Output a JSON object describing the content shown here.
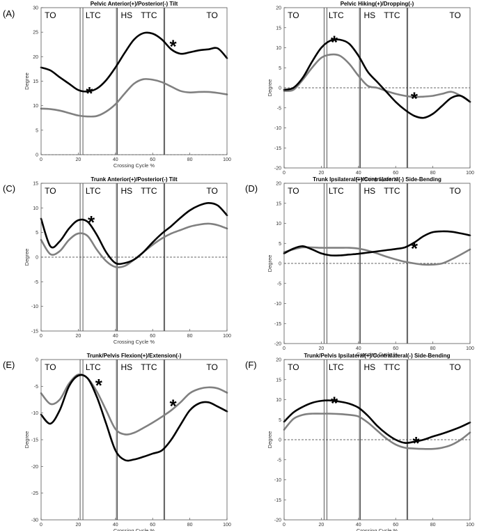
{
  "chart_data": [
    {
      "type": "line",
      "panel_label": "(A)",
      "title": "Pelvic Anterior(+)/Posterior(-) Tilt",
      "xlabel": "Crossing Cycle %",
      "ylabel": "Degree",
      "xlim": [
        0,
        100
      ],
      "ylim": [
        0,
        30
      ],
      "xticks": [
        0,
        20,
        40,
        60,
        80,
        100
      ],
      "yticks": [
        0,
        5,
        10,
        15,
        20,
        25,
        30
      ],
      "zero_line": 0,
      "phase_lines": [
        [
          21,
          22.5
        ],
        [
          40.5,
          41
        ],
        [
          66,
          66.5
        ]
      ],
      "phase_labels": [
        {
          "text": "TO",
          "x": 5
        },
        {
          "text": "LTC",
          "x": 28
        },
        {
          "text": "HS",
          "x": 46
        },
        {
          "text": "TTC",
          "x": 58
        },
        {
          "text": "TO",
          "x": 92
        }
      ],
      "series": [
        {
          "name": "black",
          "color": "#000000",
          "x": [
            0,
            5,
            10,
            15,
            20,
            25,
            30,
            35,
            40,
            45,
            50,
            55,
            60,
            65,
            70,
            75,
            80,
            85,
            90,
            95,
            100
          ],
          "values": [
            17.8,
            17.2,
            15.8,
            14.5,
            13.2,
            12.9,
            13.5,
            15.2,
            17.8,
            20.8,
            23.5,
            24.8,
            24.7,
            23.5,
            21.5,
            20.6,
            20.9,
            21.3,
            21.5,
            21.7,
            19.7
          ]
        },
        {
          "name": "gray",
          "color": "#808080",
          "x": [
            0,
            5,
            10,
            15,
            20,
            25,
            30,
            35,
            40,
            45,
            50,
            55,
            60,
            65,
            70,
            75,
            80,
            85,
            90,
            95,
            100
          ],
          "values": [
            9.4,
            9.3,
            9.0,
            8.5,
            8.0,
            7.8,
            7.9,
            8.8,
            10.3,
            12.5,
            14.5,
            15.4,
            15.3,
            14.8,
            13.9,
            13.0,
            12.7,
            12.8,
            12.8,
            12.6,
            12.3
          ]
        }
      ],
      "annotations": [
        {
          "text": "*",
          "x": 26,
          "y": 13.2
        },
        {
          "text": "*",
          "x": 71,
          "y": 22.8
        }
      ]
    },
    {
      "type": "line",
      "panel_label": "",
      "title": "Pelvic Hiking(+)/Dropping(-)",
      "xlabel": "Crossing Cycle %",
      "ylabel": "Degree",
      "xlim": [
        0,
        100
      ],
      "ylim": [
        -20,
        20
      ],
      "xticks": [
        0,
        20,
        40,
        60,
        80,
        100
      ],
      "yticks": [
        -20,
        -15,
        -10,
        -5,
        0,
        5,
        10,
        15,
        20
      ],
      "zero_line": 0,
      "phase_lines": [
        [
          21.5,
          23
        ],
        [
          40.5,
          41
        ],
        [
          66,
          66.5
        ]
      ],
      "phase_labels": [
        {
          "text": "TO",
          "x": 5
        },
        {
          "text": "LTC",
          "x": 28
        },
        {
          "text": "HS",
          "x": 46
        },
        {
          "text": "TTC",
          "x": 58
        },
        {
          "text": "TO",
          "x": 92
        }
      ],
      "series": [
        {
          "name": "black",
          "color": "#000000",
          "x": [
            0,
            5,
            10,
            15,
            20,
            25,
            30,
            35,
            40,
            45,
            50,
            55,
            60,
            65,
            70,
            75,
            80,
            85,
            90,
            95,
            100
          ],
          "values": [
            -0.5,
            0,
            2.5,
            6.5,
            10,
            11.8,
            12,
            11,
            8,
            4,
            1.5,
            -1,
            -3.5,
            -5.5,
            -7,
            -7.5,
            -6.5,
            -4.5,
            -2.5,
            -2,
            -3.5
          ]
        },
        {
          "name": "gray",
          "color": "#808080",
          "x": [
            0,
            5,
            10,
            15,
            20,
            25,
            30,
            35,
            40,
            45,
            50,
            55,
            60,
            65,
            70,
            75,
            80,
            85,
            90,
            95,
            100
          ],
          "values": [
            -0.8,
            -0.5,
            2,
            5,
            7.5,
            8.3,
            8,
            6,
            3,
            0.5,
            0,
            -0.8,
            -1.5,
            -2,
            -2.3,
            -2.2,
            -2,
            -1.5,
            -1,
            -2,
            -3.5
          ]
        }
      ],
      "annotations": [
        {
          "text": "*",
          "x": 27,
          "y": 12.3
        },
        {
          "text": "*",
          "x": 70,
          "y": -1.8
        }
      ]
    },
    {
      "type": "line",
      "panel_label": "(C)",
      "title": "Trunk Anterior(+)/Posterior(-) Tilt",
      "xlabel": "Crossing Cycle %",
      "ylabel": "Degree",
      "xlim": [
        0,
        100
      ],
      "ylim": [
        -15,
        15
      ],
      "xticks": [
        0,
        20,
        40,
        60,
        80,
        100
      ],
      "yticks": [
        -15,
        -10,
        -5,
        0,
        5,
        10,
        15
      ],
      "zero_line": 0,
      "phase_lines": [
        [
          21,
          22.5
        ],
        [
          40.5,
          41
        ],
        [
          66,
          66.5
        ]
      ],
      "phase_labels": [
        {
          "text": "TO",
          "x": 5
        },
        {
          "text": "LTC",
          "x": 28
        },
        {
          "text": "HS",
          "x": 46
        },
        {
          "text": "TTC",
          "x": 58
        },
        {
          "text": "TO",
          "x": 92
        }
      ],
      "series": [
        {
          "name": "black",
          "color": "#000000",
          "x": [
            0,
            5,
            10,
            15,
            20,
            25,
            30,
            35,
            40,
            45,
            50,
            55,
            60,
            65,
            70,
            75,
            80,
            85,
            90,
            95,
            100
          ],
          "values": [
            7.8,
            2.2,
            3.2,
            5.8,
            7.5,
            7.2,
            4.5,
            1,
            -1.2,
            -1.2,
            -0.5,
            1,
            3,
            4.8,
            6.3,
            8,
            9.5,
            10.5,
            11,
            10.5,
            8.5
          ]
        },
        {
          "name": "gray",
          "color": "#808080",
          "x": [
            0,
            5,
            10,
            15,
            20,
            25,
            30,
            35,
            40,
            45,
            50,
            55,
            60,
            65,
            70,
            75,
            80,
            85,
            90,
            95,
            100
          ],
          "values": [
            3.5,
            0.6,
            1.2,
            3.5,
            4.8,
            4.3,
            1.5,
            -0.8,
            -2,
            -1.8,
            -0.5,
            1,
            2.5,
            3.8,
            4.8,
            5.5,
            6.2,
            6.6,
            6.8,
            6.5,
            5.8
          ]
        }
      ],
      "annotations": [
        {
          "text": "*",
          "x": 27,
          "y": 7.8
        }
      ]
    },
    {
      "type": "line",
      "panel_label": "(D)",
      "title": "Trunk Ipsilateral(+)/Contralateral(-) Side-Bending",
      "xlabel": "Crossing Cycle %",
      "ylabel": "Degree",
      "xlim": [
        0,
        100
      ],
      "ylim": [
        -20,
        20
      ],
      "xticks": [
        0,
        20,
        40,
        60,
        80,
        100
      ],
      "yticks": [
        -20,
        -15,
        -10,
        -5,
        0,
        5,
        10,
        15,
        20
      ],
      "zero_line": 0,
      "phase_lines": [
        [
          21.5,
          23
        ],
        [
          40.5,
          41
        ],
        [
          66,
          66.5
        ]
      ],
      "phase_labels": [
        {
          "text": "TO",
          "x": 5
        },
        {
          "text": "LTC",
          "x": 28
        },
        {
          "text": "HS",
          "x": 46
        },
        {
          "text": "TTC",
          "x": 58
        },
        {
          "text": "TO",
          "x": 92
        }
      ],
      "series": [
        {
          "name": "black",
          "color": "#000000",
          "x": [
            0,
            5,
            10,
            15,
            20,
            25,
            30,
            35,
            40,
            45,
            50,
            55,
            60,
            65,
            70,
            75,
            80,
            85,
            90,
            95,
            100
          ],
          "values": [
            2.5,
            3.7,
            4.3,
            3.5,
            2.5,
            2,
            2,
            2.2,
            2.4,
            2.7,
            3,
            3.3,
            3.6,
            4,
            5.2,
            6.8,
            7.8,
            8,
            7.9,
            7.5,
            7
          ]
        },
        {
          "name": "gray",
          "color": "#808080",
          "x": [
            0,
            5,
            10,
            15,
            20,
            25,
            30,
            35,
            40,
            45,
            50,
            55,
            60,
            65,
            70,
            75,
            80,
            85,
            90,
            95,
            100
          ],
          "values": [
            2.8,
            3.5,
            4,
            4,
            3.9,
            3.9,
            3.9,
            3.9,
            3.7,
            3.2,
            2.5,
            1.7,
            1,
            0.4,
            0,
            -0.3,
            -0.3,
            0,
            1,
            2.2,
            3.5
          ]
        }
      ],
      "annotations": [
        {
          "text": "*",
          "x": 70,
          "y": 4.6
        }
      ]
    },
    {
      "type": "line",
      "panel_label": "(E)",
      "title": "Trunk/Pelvis Flexion(+)/Extension(-)",
      "xlabel": "Crossing Cycle %",
      "ylabel": "Degree",
      "xlim": [
        0,
        100
      ],
      "ylim": [
        -30,
        0
      ],
      "xticks": [
        0,
        20,
        40,
        60,
        80,
        100
      ],
      "yticks": [
        -30,
        -25,
        -20,
        -15,
        -10,
        -5,
        0
      ],
      "zero_line": null,
      "phase_lines": [
        [
          21,
          22.5
        ],
        [
          40.5,
          41
        ],
        [
          66,
          66.5
        ]
      ],
      "phase_labels": [
        {
          "text": "TO",
          "x": 5
        },
        {
          "text": "LTC",
          "x": 28
        },
        {
          "text": "HS",
          "x": 46
        },
        {
          "text": "TTC",
          "x": 58
        },
        {
          "text": "TO",
          "x": 92
        }
      ],
      "series": [
        {
          "name": "black",
          "color": "#000000",
          "x": [
            0,
            5,
            10,
            15,
            20,
            25,
            30,
            35,
            40,
            45,
            50,
            55,
            60,
            65,
            70,
            75,
            80,
            85,
            90,
            95,
            100
          ],
          "values": [
            -10.3,
            -12,
            -9.5,
            -5,
            -3,
            -3.5,
            -7,
            -12,
            -17,
            -18.8,
            -18.7,
            -18.2,
            -17.6,
            -17,
            -15,
            -12.2,
            -9.5,
            -8.2,
            -8,
            -8.8,
            -9.7
          ]
        },
        {
          "name": "gray",
          "color": "#808080",
          "x": [
            0,
            5,
            10,
            15,
            20,
            25,
            30,
            35,
            40,
            45,
            50,
            55,
            60,
            65,
            70,
            75,
            80,
            85,
            90,
            95,
            100
          ],
          "values": [
            -6.3,
            -8.3,
            -7.5,
            -4.5,
            -2.8,
            -3.5,
            -6,
            -9.5,
            -13,
            -14,
            -13.7,
            -12.8,
            -11.8,
            -10.7,
            -9.5,
            -8,
            -6.3,
            -5.5,
            -5.2,
            -5.4,
            -6.2
          ]
        }
      ],
      "annotations": [
        {
          "text": "*",
          "x": 31,
          "y": -4.2
        },
        {
          "text": "*",
          "x": 71,
          "y": -8
        }
      ]
    },
    {
      "type": "line",
      "panel_label": "(F)",
      "title": "Trunk/Pelvis Ipsilateral(+)/Contralateral(-) Side-Bending",
      "xlabel": "Crossing Cycle %",
      "ylabel": "Degree",
      "xlim": [
        0,
        100
      ],
      "ylim": [
        -20,
        20
      ],
      "xticks": [
        0,
        20,
        40,
        60,
        80,
        100
      ],
      "yticks": [
        -20,
        -15,
        -10,
        -5,
        0,
        5,
        10,
        15,
        20
      ],
      "zero_line": 0,
      "phase_lines": [
        [
          21.5,
          23
        ],
        [
          40.5,
          41
        ],
        [
          66,
          66.5
        ]
      ],
      "phase_labels": [
        {
          "text": "TO",
          "x": 5
        },
        {
          "text": "LTC",
          "x": 28
        },
        {
          "text": "HS",
          "x": 46
        },
        {
          "text": "TTC",
          "x": 58
        },
        {
          "text": "TO",
          "x": 92
        }
      ],
      "series": [
        {
          "name": "black",
          "color": "#000000",
          "x": [
            0,
            5,
            10,
            15,
            20,
            25,
            30,
            35,
            40,
            45,
            50,
            55,
            60,
            65,
            70,
            75,
            80,
            85,
            90,
            95,
            100
          ],
          "values": [
            4.5,
            6.8,
            8.2,
            9.2,
            9.7,
            9.8,
            9.5,
            9,
            8,
            6,
            3.5,
            1.5,
            0,
            -0.8,
            -0.5,
            0,
            0.8,
            1.5,
            2.3,
            3.2,
            4.3
          ]
        },
        {
          "name": "gray",
          "color": "#808080",
          "x": [
            0,
            5,
            10,
            15,
            20,
            25,
            30,
            35,
            40,
            45,
            50,
            55,
            60,
            65,
            70,
            75,
            80,
            85,
            90,
            95,
            100
          ],
          "values": [
            2.5,
            5.2,
            6.2,
            6.5,
            6.5,
            6.5,
            6.4,
            6.2,
            5.8,
            4.3,
            2.3,
            0.3,
            -1.2,
            -2,
            -2.2,
            -2.3,
            -2.3,
            -2,
            -1.3,
            0,
            1.8
          ]
        }
      ],
      "annotations": [
        {
          "text": "*",
          "x": 27,
          "y": 10
        },
        {
          "text": "*",
          "x": 71,
          "y": 0
        }
      ]
    }
  ]
}
